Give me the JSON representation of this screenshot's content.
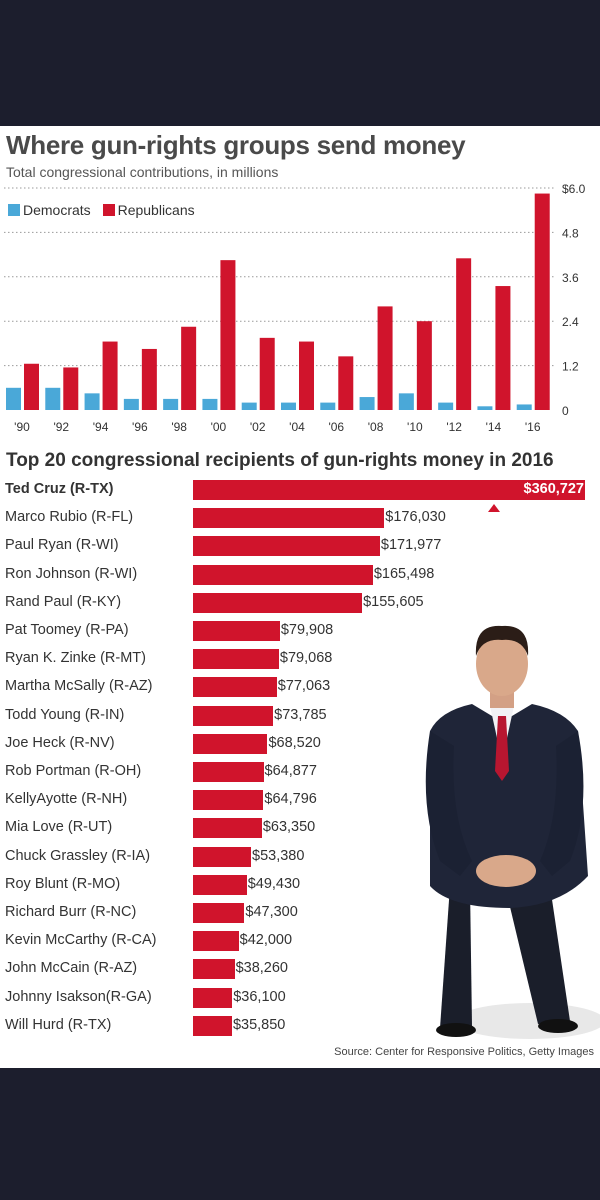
{
  "title": "Where gun-rights groups send money",
  "subtitle": "Total congressional contributions, in millions",
  "legend": [
    {
      "label": "Democrats",
      "color": "#4aa8d8"
    },
    {
      "label": "Republicans",
      "color": "#d0142c"
    }
  ],
  "section2_title": "Top 20 congressional recipients of gun-rights money in 2016",
  "source": "Source: Center for Responsive Politics, Getty Images",
  "chart_data": [
    {
      "type": "bar",
      "title": "Where gun-rights groups send money",
      "ylabel": "Total congressional contributions, in millions",
      "categories": [
        "'90",
        "'92",
        "'94",
        "'96",
        "'98",
        "'00",
        "'02",
        "'04",
        "'06",
        "'08",
        "'10",
        "'12",
        "'14",
        "'16"
      ],
      "series": [
        {
          "name": "Democrats",
          "color": "#4aa8d8",
          "values": [
            0.6,
            0.6,
            0.45,
            0.3,
            0.3,
            0.3,
            0.2,
            0.2,
            0.2,
            0.35,
            0.45,
            0.2,
            0.1,
            0.15
          ]
        },
        {
          "name": "Republicans",
          "color": "#d0142c",
          "values": [
            1.25,
            1.15,
            1.85,
            1.65,
            2.25,
            4.05,
            1.95,
            1.85,
            1.45,
            2.8,
            2.4,
            4.1,
            3.35,
            5.85
          ]
        }
      ],
      "yticks": [
        "0",
        "1.2",
        "2.4",
        "3.6",
        "4.8",
        "$6.0"
      ],
      "ylim": [
        0,
        6.0
      ],
      "grid": true,
      "legend": "top-left"
    },
    {
      "type": "bar",
      "orientation": "horizontal",
      "title": "Top 20 congressional recipients of gun-rights money in 2016",
      "categories": [
        "Ted Cruz (R-TX)",
        "Marco Rubio (R-FL)",
        "Paul Ryan (R-WI)",
        "Ron Johnson (R-WI)",
        "Rand Paul (R-KY)",
        "Pat Toomey (R-PA)",
        "Ryan K. Zinke (R-MT)",
        "Martha McSally (R-AZ)",
        "Todd Young (R-IN)",
        "Joe Heck (R-NV)",
        "Rob Portman (R-OH)",
        "KellyAyotte (R-NH)",
        "Mia Love (R-UT)",
        "Chuck Grassley (R-IA)",
        "Roy Blunt (R-MO)",
        "Richard Burr (R-NC)",
        "Kevin McCarthy (R-CA)",
        "John McCain (R-AZ)",
        "Johnny  Isakson(R-GA)",
        "Will Hurd (R-TX)"
      ],
      "values": [
        360727,
        176030,
        171977,
        165498,
        155605,
        79908,
        79068,
        77063,
        73785,
        68520,
        64877,
        64796,
        63350,
        53380,
        49430,
        47300,
        42000,
        38260,
        36100,
        35850
      ],
      "value_labels": [
        "$360,727",
        "$176,030",
        "$171,977",
        "$165,498",
        "$155,605",
        "$79,908",
        "$79,068",
        "$77,063",
        "$73,785",
        "$68,520",
        "$64,877",
        "$64,796",
        "$63,350",
        "$53,380",
        "$49,430",
        "$47,300",
        "$42,000",
        "$38,260",
        "$36,100",
        "$35,850"
      ],
      "color": "#d0142c"
    }
  ]
}
